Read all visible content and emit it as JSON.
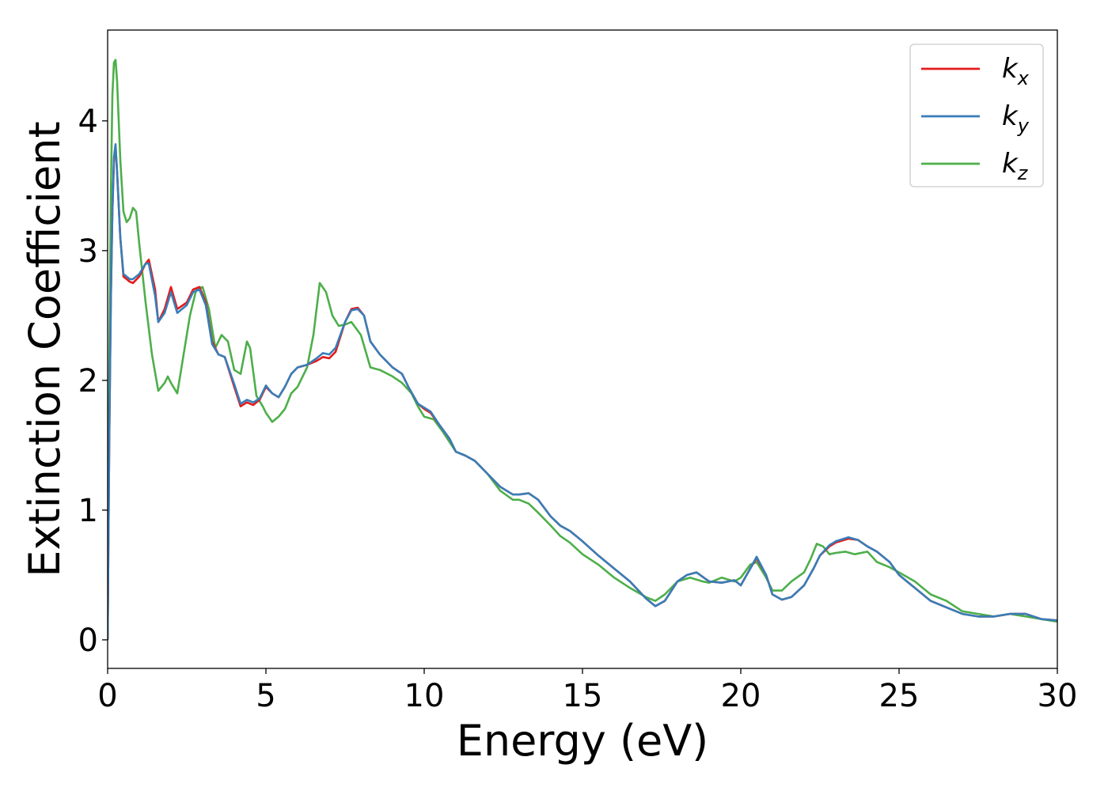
{
  "chart_data": {
    "type": "line",
    "xlabel": "Energy (eV)",
    "ylabel": "Extinction Coefficient",
    "xlim": [
      0,
      30
    ],
    "ylim": [
      -0.22,
      4.7
    ],
    "xticks": [
      "0",
      "5",
      "10",
      "15",
      "20",
      "25",
      "30"
    ],
    "yticks": [
      "0",
      "1",
      "2",
      "3",
      "4"
    ],
    "grid": false,
    "legend_position": "top-right",
    "series": [
      {
        "name": "k",
        "subscript": "x",
        "color": "#e41a1c",
        "x": [
          0.0,
          0.05,
          0.1,
          0.15,
          0.2,
          0.25,
          0.3,
          0.4,
          0.5,
          0.6,
          0.7,
          0.8,
          1.0,
          1.2,
          1.3,
          1.5,
          1.6,
          1.8,
          2.0,
          2.2,
          2.5,
          2.7,
          2.9,
          3.1,
          3.3,
          3.5,
          3.7,
          4.0,
          4.2,
          4.4,
          4.6,
          4.8,
          5.0,
          5.2,
          5.4,
          5.6,
          5.8,
          6.0,
          6.3,
          6.6,
          6.8,
          7.0,
          7.2,
          7.5,
          7.7,
          7.9,
          8.1,
          8.3,
          8.6,
          9.0,
          9.3,
          9.5,
          9.8,
          10.0,
          10.2,
          10.5,
          10.8,
          11.0,
          11.3,
          11.6,
          12.0,
          12.4,
          12.8,
          13.0,
          13.3,
          13.6,
          14.0,
          14.3,
          14.6,
          15.0,
          15.5,
          16.0,
          16.5,
          17.0,
          17.3,
          17.6,
          18.0,
          18.3,
          18.6,
          19.0,
          19.4,
          19.8,
          20.0,
          20.3,
          20.5,
          20.8,
          21.0,
          21.3,
          21.6,
          22.0,
          22.3,
          22.5,
          22.8,
          23.0,
          23.4,
          23.7,
          24.0,
          24.3,
          24.7,
          25.0,
          25.5,
          26.0,
          26.5,
          27.0,
          27.5,
          28.0,
          28.5,
          29.0,
          29.5,
          30.0
        ],
        "y": [
          0.0,
          1.5,
          2.6,
          3.3,
          3.7,
          3.8,
          3.6,
          3.1,
          2.8,
          2.78,
          2.76,
          2.75,
          2.8,
          2.9,
          2.93,
          2.7,
          2.45,
          2.55,
          2.72,
          2.55,
          2.6,
          2.7,
          2.72,
          2.6,
          2.3,
          2.2,
          2.18,
          1.95,
          1.8,
          1.83,
          1.81,
          1.85,
          1.95,
          1.9,
          1.87,
          1.95,
          2.05,
          2.1,
          2.12,
          2.15,
          2.18,
          2.17,
          2.22,
          2.45,
          2.55,
          2.56,
          2.5,
          2.3,
          2.2,
          2.1,
          2.05,
          1.95,
          1.82,
          1.78,
          1.75,
          1.65,
          1.55,
          1.45,
          1.42,
          1.38,
          1.28,
          1.18,
          1.12,
          1.12,
          1.13,
          1.08,
          0.95,
          0.88,
          0.84,
          0.76,
          0.65,
          0.55,
          0.45,
          0.32,
          0.26,
          0.3,
          0.45,
          0.5,
          0.52,
          0.45,
          0.44,
          0.46,
          0.42,
          0.55,
          0.63,
          0.5,
          0.35,
          0.31,
          0.33,
          0.42,
          0.55,
          0.65,
          0.72,
          0.75,
          0.78,
          0.77,
          0.72,
          0.68,
          0.6,
          0.5,
          0.4,
          0.3,
          0.25,
          0.2,
          0.18,
          0.18,
          0.2,
          0.2,
          0.16,
          0.15
        ]
      },
      {
        "name": "k",
        "subscript": "y",
        "color": "#377eb8",
        "x": [
          0.0,
          0.05,
          0.1,
          0.15,
          0.2,
          0.25,
          0.3,
          0.4,
          0.5,
          0.6,
          0.7,
          0.8,
          1.0,
          1.2,
          1.3,
          1.5,
          1.6,
          1.8,
          2.0,
          2.2,
          2.5,
          2.7,
          2.9,
          3.1,
          3.3,
          3.5,
          3.7,
          4.0,
          4.2,
          4.4,
          4.6,
          4.8,
          5.0,
          5.2,
          5.4,
          5.6,
          5.8,
          6.0,
          6.3,
          6.6,
          6.8,
          7.0,
          7.2,
          7.5,
          7.7,
          7.9,
          8.1,
          8.3,
          8.6,
          9.0,
          9.3,
          9.5,
          9.8,
          10.0,
          10.2,
          10.5,
          10.8,
          11.0,
          11.3,
          11.6,
          12.0,
          12.4,
          12.8,
          13.0,
          13.3,
          13.6,
          14.0,
          14.3,
          14.6,
          15.0,
          15.5,
          16.0,
          16.5,
          17.0,
          17.3,
          17.6,
          18.0,
          18.3,
          18.6,
          19.0,
          19.4,
          19.8,
          20.0,
          20.3,
          20.5,
          20.8,
          21.0,
          21.3,
          21.6,
          22.0,
          22.3,
          22.5,
          22.8,
          23.0,
          23.4,
          23.7,
          24.0,
          24.3,
          24.7,
          25.0,
          25.5,
          26.0,
          26.5,
          27.0,
          27.5,
          28.0,
          28.5,
          29.0,
          29.5,
          30.0
        ],
        "y": [
          0.0,
          1.5,
          2.6,
          3.3,
          3.72,
          3.82,
          3.6,
          3.1,
          2.82,
          2.8,
          2.78,
          2.78,
          2.82,
          2.9,
          2.9,
          2.65,
          2.45,
          2.52,
          2.68,
          2.52,
          2.58,
          2.68,
          2.7,
          2.58,
          2.28,
          2.2,
          2.18,
          1.97,
          1.82,
          1.85,
          1.83,
          1.86,
          1.96,
          1.9,
          1.87,
          1.95,
          2.05,
          2.1,
          2.12,
          2.17,
          2.21,
          2.2,
          2.25,
          2.45,
          2.54,
          2.55,
          2.5,
          2.3,
          2.2,
          2.1,
          2.05,
          1.95,
          1.82,
          1.79,
          1.76,
          1.65,
          1.55,
          1.45,
          1.42,
          1.38,
          1.28,
          1.18,
          1.12,
          1.12,
          1.13,
          1.08,
          0.95,
          0.88,
          0.84,
          0.76,
          0.65,
          0.55,
          0.45,
          0.32,
          0.26,
          0.3,
          0.45,
          0.5,
          0.52,
          0.45,
          0.44,
          0.46,
          0.42,
          0.55,
          0.64,
          0.5,
          0.35,
          0.31,
          0.33,
          0.42,
          0.55,
          0.65,
          0.73,
          0.76,
          0.79,
          0.77,
          0.72,
          0.68,
          0.6,
          0.5,
          0.4,
          0.3,
          0.25,
          0.2,
          0.18,
          0.18,
          0.2,
          0.2,
          0.16,
          0.15
        ]
      },
      {
        "name": "k",
        "subscript": "z",
        "color": "#4daf4a",
        "x": [
          0.0,
          0.05,
          0.1,
          0.15,
          0.2,
          0.25,
          0.3,
          0.4,
          0.5,
          0.6,
          0.7,
          0.8,
          0.9,
          1.0,
          1.2,
          1.4,
          1.6,
          1.8,
          1.9,
          2.0,
          2.2,
          2.4,
          2.6,
          2.8,
          3.0,
          3.2,
          3.4,
          3.6,
          3.8,
          4.0,
          4.2,
          4.4,
          4.5,
          4.7,
          4.9,
          5.0,
          5.2,
          5.4,
          5.6,
          5.8,
          6.0,
          6.3,
          6.5,
          6.7,
          6.9,
          7.1,
          7.3,
          7.5,
          7.7,
          8.0,
          8.3,
          8.6,
          9.0,
          9.3,
          9.6,
          9.8,
          10.0,
          10.3,
          10.6,
          11.0,
          11.3,
          11.6,
          12.0,
          12.4,
          12.8,
          13.0,
          13.3,
          13.6,
          14.0,
          14.3,
          14.6,
          15.0,
          15.5,
          16.0,
          16.5,
          17.0,
          17.3,
          17.6,
          18.0,
          18.4,
          18.8,
          19.0,
          19.4,
          19.8,
          20.0,
          20.3,
          20.5,
          20.8,
          21.0,
          21.3,
          21.6,
          22.0,
          22.2,
          22.4,
          22.6,
          22.8,
          23.0,
          23.3,
          23.6,
          24.0,
          24.3,
          24.7,
          25.0,
          25.5,
          26.0,
          26.5,
          27.0,
          27.5,
          28.0,
          28.5,
          29.0,
          29.5,
          30.0
        ],
        "y": [
          0.0,
          2.0,
          3.4,
          4.2,
          4.45,
          4.47,
          4.3,
          3.7,
          3.3,
          3.22,
          3.25,
          3.33,
          3.3,
          3.05,
          2.6,
          2.2,
          1.92,
          1.98,
          2.03,
          1.98,
          1.9,
          2.2,
          2.5,
          2.7,
          2.72,
          2.55,
          2.25,
          2.35,
          2.3,
          2.08,
          2.05,
          2.3,
          2.25,
          1.88,
          1.8,
          1.75,
          1.68,
          1.72,
          1.78,
          1.9,
          1.95,
          2.1,
          2.35,
          2.75,
          2.68,
          2.5,
          2.42,
          2.43,
          2.45,
          2.35,
          2.1,
          2.08,
          2.03,
          1.98,
          1.9,
          1.8,
          1.72,
          1.7,
          1.6,
          1.45,
          1.42,
          1.38,
          1.28,
          1.15,
          1.08,
          1.08,
          1.05,
          0.98,
          0.88,
          0.8,
          0.75,
          0.66,
          0.58,
          0.48,
          0.4,
          0.33,
          0.3,
          0.35,
          0.45,
          0.48,
          0.45,
          0.44,
          0.48,
          0.45,
          0.48,
          0.58,
          0.6,
          0.48,
          0.38,
          0.38,
          0.45,
          0.52,
          0.62,
          0.74,
          0.72,
          0.66,
          0.67,
          0.68,
          0.66,
          0.68,
          0.6,
          0.56,
          0.52,
          0.45,
          0.35,
          0.3,
          0.22,
          0.2,
          0.18,
          0.2,
          0.18,
          0.16,
          0.14
        ]
      }
    ]
  }
}
